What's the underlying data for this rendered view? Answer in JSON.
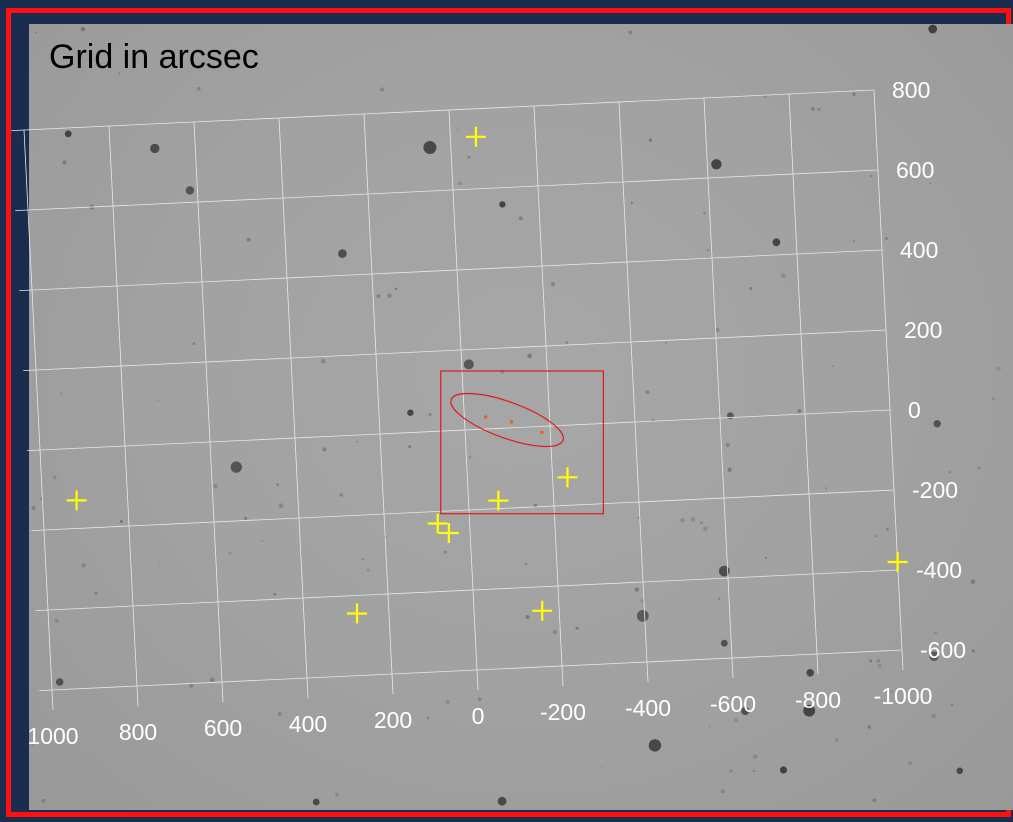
{
  "title": "Grid in arcsec",
  "grid": {
    "x_ticks": [
      1000,
      800,
      600,
      400,
      200,
      0,
      -200,
      -400,
      -600,
      -800,
      -1000
    ],
    "y_ticks": [
      800,
      600,
      400,
      200,
      0,
      -200,
      -400,
      -600
    ],
    "x_tick_labels": [
      "1000",
      "800",
      "600",
      "400",
      "200",
      "0",
      "-200",
      "-400",
      "-600",
      "-800",
      "-1000"
    ],
    "y_tick_labels": [
      "800",
      "600",
      "400",
      "200",
      "0",
      "-200",
      "-400",
      "-600"
    ]
  },
  "markers": [
    {
      "x": -60,
      "y": 730
    },
    {
      "x": 920,
      "y": -130
    },
    {
      "x": -70,
      "y": -180
    },
    {
      "x": -235,
      "y": -130
    },
    {
      "x": 75,
      "y": -230
    },
    {
      "x": 50,
      "y": -255
    },
    {
      "x": 275,
      "y": -445
    },
    {
      "x": -160,
      "y": -460
    },
    {
      "x": -1000,
      "y": -380
    }
  ],
  "region_box": {
    "x1": 50,
    "x2": -315,
    "y1": 150,
    "y2": -225
  },
  "ellipse": {
    "cx": -100,
    "cy": 20,
    "rx": 140,
    "ry": 45,
    "angle_deg": -20
  },
  "source_points": [
    {
      "x": -50,
      "y": 30
    },
    {
      "x": -110,
      "y": 15
    },
    {
      "x": -180,
      "y": -15
    }
  ],
  "colors": {
    "frame": "#ff1010",
    "background": "#1b2d4f",
    "grid": "#e8e8e8",
    "marker": "#ffff00",
    "region": "#e0191e",
    "labels": "#ffffff",
    "title": "#000000"
  }
}
